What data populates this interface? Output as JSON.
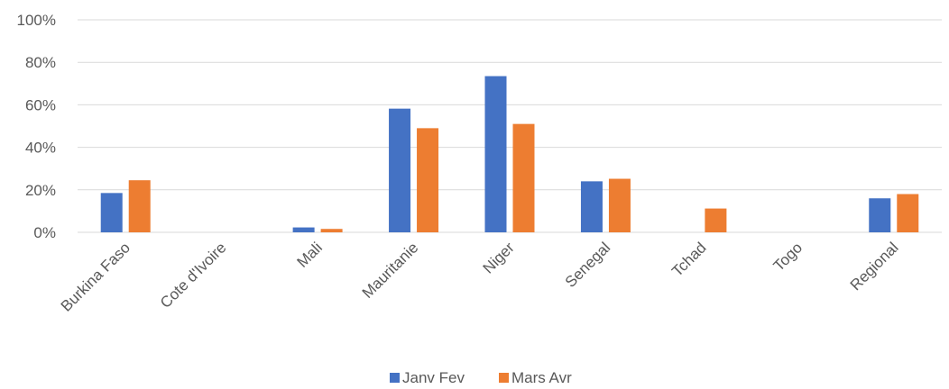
{
  "chart_data": {
    "type": "bar",
    "categories": [
      "Burkina Faso",
      "Cote d'Ivoire",
      "Mali",
      "Mauritanie",
      "Niger",
      "Senegal",
      "Tchad",
      "Togo",
      "Regional"
    ],
    "series": [
      {
        "name": "Janv Fev",
        "color": "#4472c4",
        "values": [
          18.5,
          0,
          2.3,
          58.2,
          73.5,
          24.0,
          0,
          0,
          16.0
        ]
      },
      {
        "name": "Mars Avr",
        "color": "#ed7d31",
        "values": [
          24.5,
          0,
          1.6,
          49.0,
          51.0,
          25.2,
          11.2,
          0,
          18.0
        ]
      }
    ],
    "ylim": [
      0,
      100
    ],
    "yticks": [
      "0%",
      "20%",
      "40%",
      "60%",
      "80%",
      "100%"
    ],
    "ytick_values": [
      0,
      20,
      40,
      60,
      80,
      100
    ],
    "grid": true,
    "legend_position": "bottom"
  }
}
